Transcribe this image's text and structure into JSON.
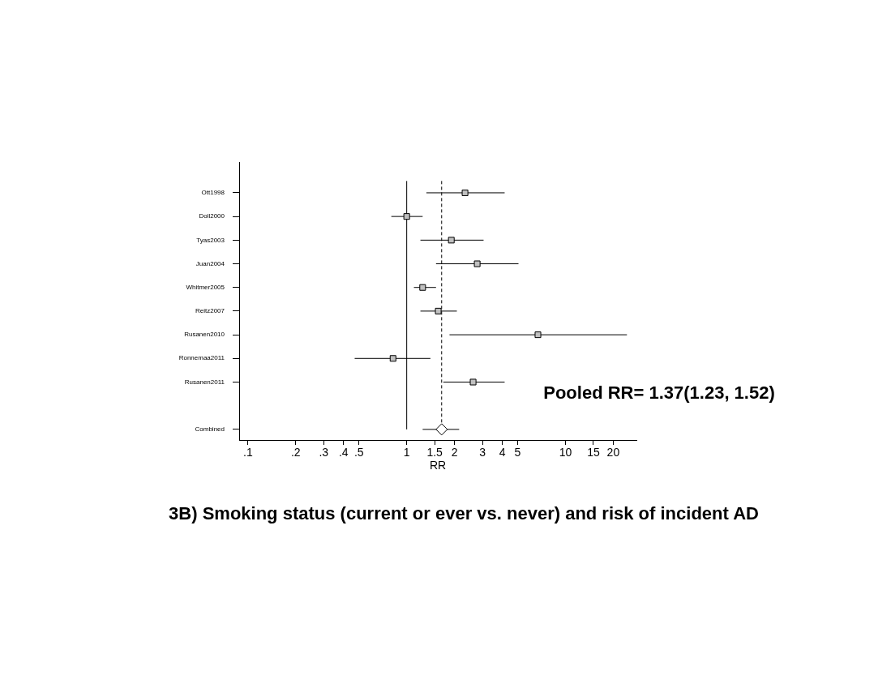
{
  "chart_data": {
    "type": "scatter",
    "orientation": "horizontal",
    "title": "3B) Smoking status (current or ever vs. never) and risk of incident AD",
    "xlabel": "RR",
    "log": "x",
    "marker": "square",
    "grid": false,
    "legend": false,
    "categories": [
      "Ott1998",
      "Doll2000",
      "Tyas2003",
      "Juan2004",
      "Whitmer2005",
      "Reitz2007",
      "Rusanen2010",
      "Ronnemaa2011",
      "Rusanen2011",
      null,
      "Combined"
    ],
    "xlim": [
      0.088,
      28
    ],
    "xticks": [
      {
        "value": 0.1,
        "label": ".1"
      },
      {
        "value": 0.2,
        "label": ".2"
      },
      {
        "value": 0.3,
        "label": ".3"
      },
      {
        "value": 0.4,
        "label": ".4"
      },
      {
        "value": 0.5,
        "label": ".5"
      },
      1,
      1.5,
      2,
      3,
      4,
      5,
      10,
      15,
      20
    ],
    "series": [
      {
        "color": "#c0c0c0",
        "values": [
          2.33,
          1.0,
          1.91,
          2.78,
          1.26,
          1.58,
          6.71,
          0.82,
          2.62,
          null,
          null
        ],
        "errors": [
          [
            1.33,
            4.14
          ],
          [
            0.8,
            1.26
          ],
          [
            1.22,
            3.05
          ],
          [
            1.53,
            5.06
          ],
          [
            1.11,
            1.53
          ],
          [
            1.22,
            2.07
          ],
          [
            1.86,
            24.4
          ],
          [
            0.47,
            1.41
          ],
          [
            1.7,
            4.14
          ],
          null,
          null
        ]
      },
      {
        "color": "#ffffff",
        "marker": "diamond",
        "values": [
          null,
          null,
          null,
          null,
          null,
          null,
          null,
          null,
          null,
          null,
          1.66
        ],
        "errors": [
          null,
          null,
          null,
          null,
          null,
          null,
          null,
          null,
          null,
          null,
          [
            1.26,
            2.14
          ]
        ]
      }
    ],
    "ref_lines": [
      {
        "axis": "x",
        "value": 1,
        "color": "#000000",
        "line_style": "solid"
      },
      {
        "axis": "x",
        "value": 1.66,
        "color": "#000000",
        "line_style": "dashed"
      }
    ],
    "annotations": [
      "Pooled RR= 1.37(1.23, 1.52)"
    ]
  }
}
